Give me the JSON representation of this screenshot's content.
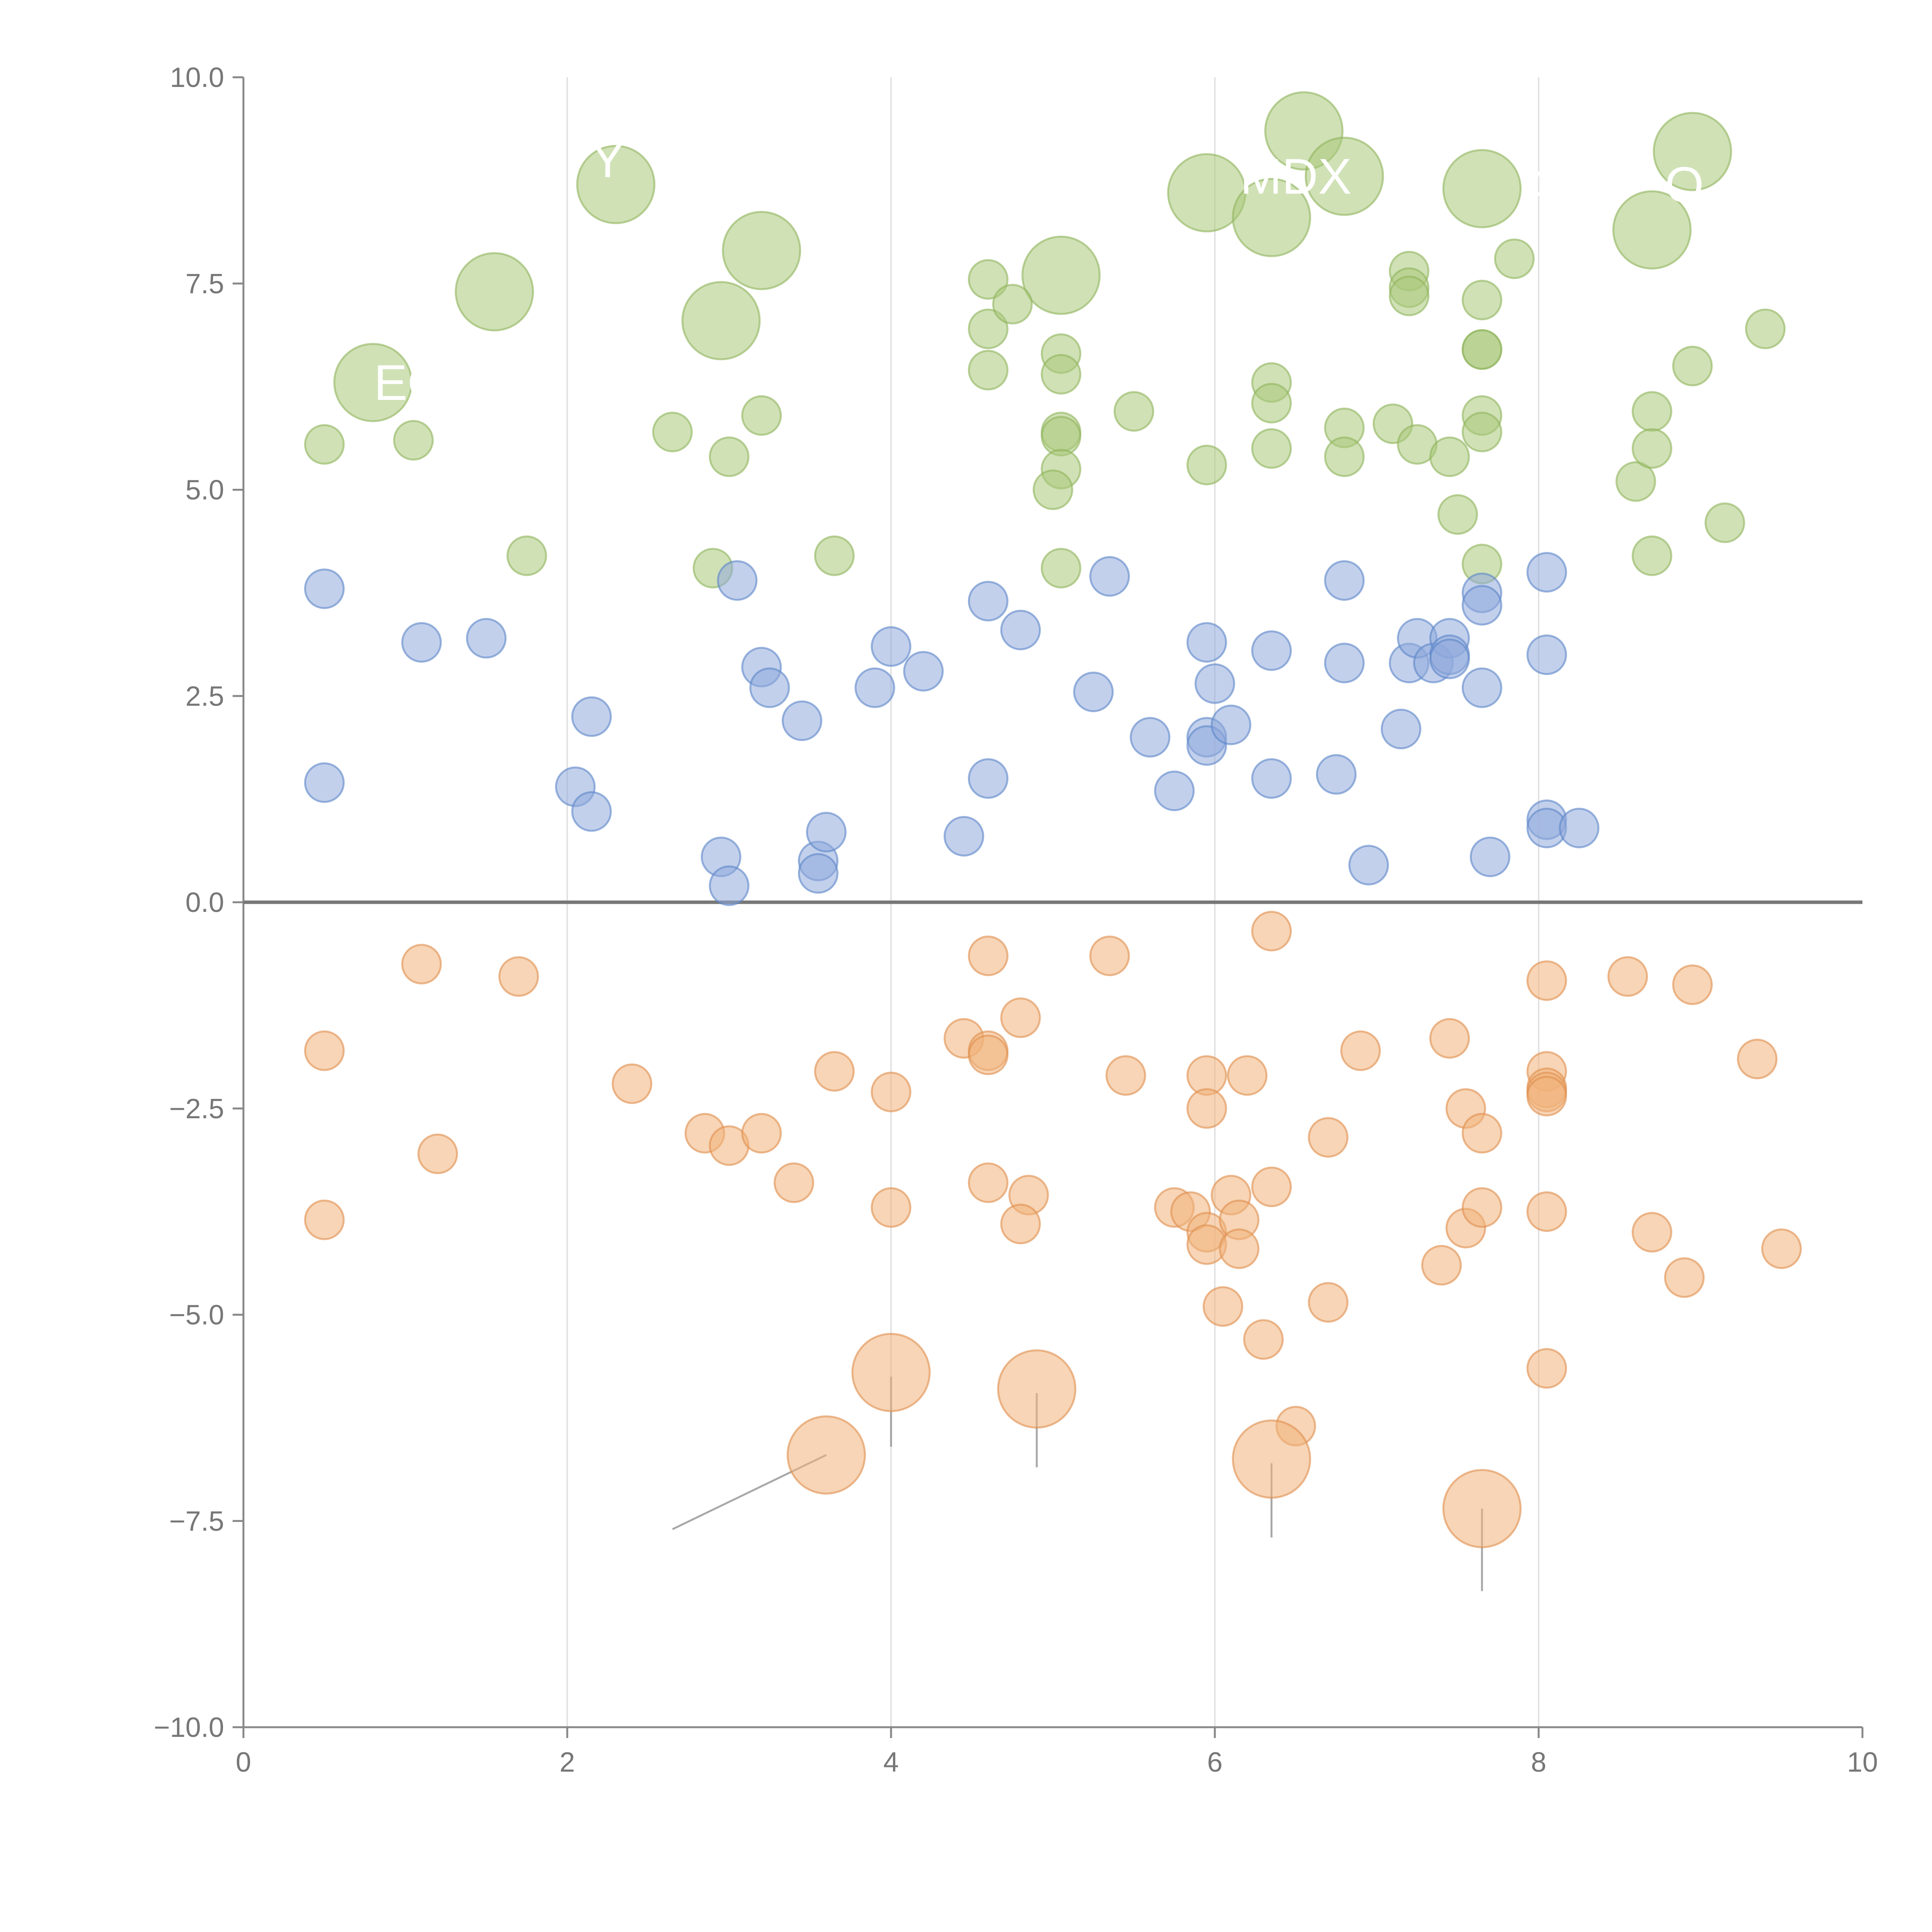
{
  "chart_data": {
    "type": "scatter",
    "title": "",
    "xlabel": "",
    "ylabel": "",
    "xlim": [
      0,
      10
    ],
    "ylim": [
      -10,
      10
    ],
    "x_ticks": [
      0,
      2,
      4,
      6,
      8,
      10
    ],
    "x_tick_labels": [
      "0",
      "2",
      "4",
      "6",
      "8",
      "10"
    ],
    "y_ticks": [
      10,
      7.5,
      5,
      2.5,
      0,
      -2.5,
      -5,
      -7.5,
      -10
    ],
    "y_tick_labels": [
      "10.0",
      "7.5",
      "5.0",
      "2.5",
      "0.0",
      "−2.5",
      "−5.0",
      "−7.5",
      "−10.0"
    ],
    "grid": "vertical",
    "legend": "none",
    "series": [
      {
        "name": "green",
        "color": "#a9c97a",
        "stroke": "#8fb45c",
        "points": [
          [
            0.8,
            6.3,
            2
          ],
          [
            1.55,
            7.4,
            2
          ],
          [
            2.3,
            8.7,
            2
          ],
          [
            2.95,
            7.05,
            2
          ],
          [
            3.2,
            7.9,
            2
          ],
          [
            5.05,
            7.6,
            2
          ],
          [
            5.95,
            8.6,
            2
          ],
          [
            6.35,
            8.3,
            2
          ],
          [
            6.55,
            9.35,
            2
          ],
          [
            6.8,
            8.8,
            2
          ],
          [
            7.65,
            8.65,
            2
          ],
          [
            8.7,
            8.15,
            2
          ],
          [
            8.95,
            9.1,
            2
          ],
          [
            0.5,
            5.55,
            1
          ],
          [
            1.05,
            5.6,
            1
          ],
          [
            1.75,
            4.2,
            1
          ],
          [
            2.65,
            5.7,
            1
          ],
          [
            2.9,
            4.05,
            1
          ],
          [
            3.0,
            5.4,
            1
          ],
          [
            3.2,
            5.9,
            1
          ],
          [
            3.65,
            4.2,
            1
          ],
          [
            4.6,
            7.55,
            1
          ],
          [
            4.6,
            6.95,
            1
          ],
          [
            4.75,
            7.25,
            1
          ],
          [
            4.6,
            6.45,
            1
          ],
          [
            5.05,
            6.65,
            1
          ],
          [
            5.05,
            6.4,
            1
          ],
          [
            5.05,
            5.7,
            1
          ],
          [
            5.05,
            5.65,
            1
          ],
          [
            5.05,
            5.25,
            1
          ],
          [
            5.0,
            5.0,
            1
          ],
          [
            5.05,
            4.05,
            1
          ],
          [
            5.5,
            5.95,
            1
          ],
          [
            5.95,
            5.3,
            1
          ],
          [
            6.35,
            6.3,
            1
          ],
          [
            6.35,
            6.05,
            1
          ],
          [
            6.35,
            5.5,
            1
          ],
          [
            6.8,
            5.75,
            1
          ],
          [
            6.8,
            5.4,
            1
          ],
          [
            7.1,
            5.8,
            1
          ],
          [
            7.2,
            7.65,
            1
          ],
          [
            7.2,
            7.45,
            1
          ],
          [
            7.2,
            7.35,
            1
          ],
          [
            7.25,
            5.55,
            1
          ],
          [
            7.45,
            5.4,
            1
          ],
          [
            7.5,
            4.7,
            1
          ],
          [
            7.65,
            7.3,
            1
          ],
          [
            7.65,
            6.7,
            1
          ],
          [
            7.65,
            6.7,
            1
          ],
          [
            7.65,
            5.9,
            1
          ],
          [
            7.65,
            5.7,
            1
          ],
          [
            7.65,
            4.1,
            1
          ],
          [
            7.85,
            7.8,
            1
          ],
          [
            8.6,
            5.1,
            1
          ],
          [
            8.7,
            5.95,
            1
          ],
          [
            8.7,
            5.5,
            1
          ],
          [
            8.7,
            4.2,
            1
          ],
          [
            8.95,
            6.5,
            1
          ],
          [
            9.15,
            4.6,
            1
          ],
          [
            9.4,
            6.95,
            1
          ]
        ]
      },
      {
        "name": "blue",
        "color": "#8faadc",
        "stroke": "#5b85c8",
        "points": [
          [
            0.5,
            3.8,
            1
          ],
          [
            0.5,
            1.45,
            1
          ],
          [
            1.1,
            3.15,
            1
          ],
          [
            1.5,
            3.2,
            1
          ],
          [
            2.05,
            1.4,
            1
          ],
          [
            2.15,
            2.25,
            1
          ],
          [
            2.15,
            1.1,
            1
          ],
          [
            2.95,
            0.55,
            1
          ],
          [
            3.0,
            0.2,
            1
          ],
          [
            3.05,
            3.9,
            1
          ],
          [
            3.2,
            2.85,
            1
          ],
          [
            3.25,
            2.6,
            1
          ],
          [
            3.45,
            2.2,
            1
          ],
          [
            3.55,
            0.5,
            1
          ],
          [
            3.55,
            0.35,
            1
          ],
          [
            3.6,
            0.85,
            1
          ],
          [
            3.9,
            2.6,
            1
          ],
          [
            4.0,
            3.1,
            1
          ],
          [
            4.2,
            2.8,
            1
          ],
          [
            4.45,
            0.8,
            1
          ],
          [
            4.6,
            3.65,
            1
          ],
          [
            4.6,
            1.5,
            1
          ],
          [
            4.8,
            3.3,
            1
          ],
          [
            5.25,
            2.55,
            1
          ],
          [
            5.35,
            3.95,
            1
          ],
          [
            5.6,
            2.0,
            1
          ],
          [
            5.75,
            1.35,
            1
          ],
          [
            5.95,
            3.15,
            1
          ],
          [
            5.95,
            2.0,
            1
          ],
          [
            5.95,
            1.9,
            1
          ],
          [
            6.0,
            2.65,
            1
          ],
          [
            6.1,
            2.15,
            1
          ],
          [
            6.35,
            3.05,
            1
          ],
          [
            6.35,
            1.5,
            1
          ],
          [
            6.75,
            1.55,
            1
          ],
          [
            6.8,
            3.9,
            1
          ],
          [
            6.8,
            2.9,
            1
          ],
          [
            6.95,
            0.45,
            1
          ],
          [
            7.15,
            2.1,
            1
          ],
          [
            7.2,
            2.9,
            1
          ],
          [
            7.25,
            3.2,
            1
          ],
          [
            7.35,
            2.9,
            1
          ],
          [
            7.45,
            3.2,
            1
          ],
          [
            7.45,
            3.0,
            1
          ],
          [
            7.45,
            2.95,
            1
          ],
          [
            7.65,
            3.75,
            1
          ],
          [
            7.65,
            3.6,
            1
          ],
          [
            7.65,
            2.6,
            1
          ],
          [
            7.7,
            0.55,
            1
          ],
          [
            8.05,
            4.0,
            1
          ],
          [
            8.05,
            3.0,
            1
          ],
          [
            8.05,
            1.0,
            1
          ],
          [
            8.05,
            0.9,
            1
          ],
          [
            8.25,
            0.9,
            1
          ]
        ]
      },
      {
        "name": "orange",
        "color": "#f0b27a",
        "stroke": "#e08d4d",
        "points": [
          [
            0.5,
            -1.8,
            1
          ],
          [
            0.5,
            -3.85,
            1
          ],
          [
            1.1,
            -0.75,
            1
          ],
          [
            1.2,
            -3.05,
            1
          ],
          [
            1.7,
            -0.9,
            1
          ],
          [
            2.4,
            -2.2,
            1
          ],
          [
            2.85,
            -2.8,
            1
          ],
          [
            3.0,
            -2.95,
            1
          ],
          [
            3.2,
            -2.8,
            1
          ],
          [
            3.4,
            -3.4,
            1
          ],
          [
            3.65,
            -2.05,
            1
          ],
          [
            4.0,
            -2.3,
            1
          ],
          [
            4.0,
            -3.7,
            1
          ],
          [
            4.45,
            -1.65,
            1
          ],
          [
            4.6,
            -1.8,
            1
          ],
          [
            4.6,
            -1.85,
            1
          ],
          [
            4.6,
            -0.65,
            1
          ],
          [
            4.6,
            -3.4,
            1
          ],
          [
            4.8,
            -1.4,
            1
          ],
          [
            4.85,
            -3.55,
            1
          ],
          [
            4.8,
            -3.9,
            1
          ],
          [
            5.35,
            -0.65,
            1
          ],
          [
            5.45,
            -2.1,
            1
          ],
          [
            5.75,
            -3.7,
            1
          ],
          [
            5.85,
            -3.75,
            1
          ],
          [
            5.95,
            -2.1,
            1
          ],
          [
            5.95,
            -2.5,
            1
          ],
          [
            5.95,
            -4.0,
            1
          ],
          [
            5.95,
            -4.15,
            1
          ],
          [
            6.05,
            -4.9,
            1
          ],
          [
            6.1,
            -3.55,
            1
          ],
          [
            6.15,
            -3.85,
            1
          ],
          [
            6.15,
            -4.2,
            1
          ],
          [
            6.2,
            -2.1,
            1
          ],
          [
            6.3,
            -5.3,
            1
          ],
          [
            6.35,
            -0.35,
            1
          ],
          [
            6.35,
            -3.45,
            1
          ],
          [
            6.5,
            -6.35,
            1
          ],
          [
            6.7,
            -2.85,
            1
          ],
          [
            6.7,
            -4.85,
            1
          ],
          [
            6.9,
            -1.8,
            1
          ],
          [
            7.4,
            -4.4,
            1
          ],
          [
            7.45,
            -1.65,
            1
          ],
          [
            7.55,
            -2.5,
            1
          ],
          [
            7.55,
            -3.95,
            1
          ],
          [
            7.65,
            -2.8,
            1
          ],
          [
            7.65,
            -3.7,
            1
          ],
          [
            8.05,
            -0.95,
            1
          ],
          [
            8.05,
            -2.05,
            1
          ],
          [
            8.05,
            -2.25,
            1
          ],
          [
            8.05,
            -2.3,
            1
          ],
          [
            8.05,
            -2.35,
            1
          ],
          [
            8.05,
            -3.75,
            1
          ],
          [
            8.05,
            -5.65,
            1
          ],
          [
            8.55,
            -0.9,
            1
          ],
          [
            8.7,
            -4.0,
            1
          ],
          [
            8.9,
            -4.55,
            1
          ],
          [
            8.95,
            -1.0,
            1
          ],
          [
            9.35,
            -1.9,
            1
          ],
          [
            9.5,
            -4.2,
            1
          ],
          [
            3.6,
            -6.7,
            2
          ],
          [
            4.0,
            -5.7,
            2
          ],
          [
            4.9,
            -5.9,
            2
          ],
          [
            6.35,
            -6.75,
            2
          ],
          [
            7.65,
            -7.35,
            2
          ]
        ]
      }
    ],
    "leader_lines": [
      [
        2.65,
        -7.6,
        3.6,
        -6.7
      ],
      [
        4.0,
        -5.75,
        4.0,
        -6.6
      ],
      [
        4.9,
        -5.95,
        4.9,
        -6.85
      ],
      [
        6.35,
        -6.8,
        6.35,
        -7.7
      ],
      [
        7.65,
        -7.35,
        7.65,
        -8.35
      ],
      [
        0.95,
        6.3,
        0.8,
        6.3
      ],
      [
        1.55,
        7.4,
        1.35,
        7.5
      ],
      [
        2.3,
        8.7,
        2.25,
        8.9
      ],
      [
        2.95,
        7.05,
        3.1,
        6.95
      ],
      [
        3.2,
        7.9,
        3.15,
        7.9
      ],
      [
        5.05,
        7.6,
        5.3,
        7.55
      ],
      [
        5.95,
        8.6,
        5.75,
        8.6
      ],
      [
        6.35,
        8.3,
        6.15,
        8.1
      ],
      [
        6.8,
        8.8,
        6.55,
        8.75
      ],
      [
        7.65,
        8.65,
        7.95,
        8.75
      ],
      [
        8.7,
        8.15,
        8.85,
        7.95
      ],
      [
        8.95,
        9.1,
        9.15,
        9.2
      ]
    ],
    "annotations": [
      {
        "text": "EG",
        "x": 1.03,
        "y": 6.3
      },
      {
        "text": "MDX",
        "x": 6.5,
        "y": 8.8
      },
      {
        "text": "A",
        "x": 8.0,
        "y": 8.65
      },
      {
        "text": "O",
        "x": 8.9,
        "y": 8.7
      },
      {
        "text": "Y",
        "x": 2.25,
        "y": 9.0
      }
    ]
  }
}
